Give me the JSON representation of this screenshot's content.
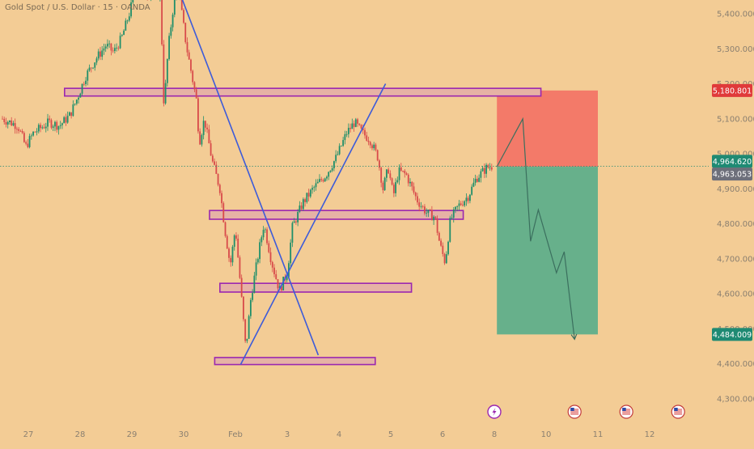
{
  "header": {
    "symbol_title": "Gold Spot / U.S. Dollar · 15 · OANDA"
  },
  "colors": {
    "background": "#f3cc95",
    "candle_up": "#1f8f6a",
    "candle_down": "#d84a4a",
    "zone_fill": "#e6b2a5",
    "zone_border": "#9b27b0",
    "trend_line": "#3d5bd9",
    "stop_zone": "#f37a69",
    "target_zone": "#67b08b",
    "projection": "#3b6f5e",
    "price_axis_text": "#8a7f70",
    "badge_current": "#1f8a73",
    "badge_prev": "#6d6f7a",
    "badge_stop": "#e03a3a",
    "badge_target": "#1f8a73"
  },
  "chart_data": {
    "type": "candlestick",
    "title": "Gold Spot / U.S. Dollar · 15 · OANDA",
    "ylim": [
      4250,
      5450
    ],
    "y_ticks": [
      {
        "value": 5400,
        "label": "5,400.000"
      },
      {
        "value": 5300,
        "label": "5,300.000"
      },
      {
        "value": 5200,
        "label": "5,200.000"
      },
      {
        "value": 5100,
        "label": "5,100.000"
      },
      {
        "value": 5000,
        "label": "5,000.000"
      },
      {
        "value": 4900,
        "label": "4,900.000"
      },
      {
        "value": 4800,
        "label": "4,800.000"
      },
      {
        "value": 4700,
        "label": "4,700.000"
      },
      {
        "value": 4600,
        "label": "4,600.000"
      },
      {
        "value": 4500,
        "label": "4,500.000"
      },
      {
        "value": 4400,
        "label": "4,400.000"
      },
      {
        "value": 4300,
        "label": "4,300.000"
      }
    ],
    "x_ticks": [
      {
        "t": 27,
        "label": "27"
      },
      {
        "t": 28,
        "label": "28"
      },
      {
        "t": 29,
        "label": "29"
      },
      {
        "t": 30,
        "label": "30"
      },
      {
        "t": 31,
        "label": "Feb"
      },
      {
        "t": 32,
        "label": "3"
      },
      {
        "t": 33,
        "label": "4"
      },
      {
        "t": 34,
        "label": "5"
      },
      {
        "t": 35,
        "label": "6"
      },
      {
        "t": 36,
        "label": "8"
      },
      {
        "t": 37,
        "label": "10"
      },
      {
        "t": 38,
        "label": "11"
      },
      {
        "t": 39,
        "label": "12"
      }
    ],
    "price_path": [
      [
        26.5,
        5100
      ],
      [
        26.8,
        5080
      ],
      [
        26.95,
        5020
      ],
      [
        27.1,
        5060
      ],
      [
        27.4,
        5090
      ],
      [
        27.6,
        5080
      ],
      [
        27.8,
        5110
      ],
      [
        27.95,
        5160
      ],
      [
        28.1,
        5220
      ],
      [
        28.3,
        5270
      ],
      [
        28.5,
        5310
      ],
      [
        28.65,
        5290
      ],
      [
        28.8,
        5330
      ],
      [
        28.95,
        5400
      ],
      [
        29.05,
        5460
      ],
      [
        29.55,
        5460
      ],
      [
        29.62,
        5130
      ],
      [
        29.7,
        5300
      ],
      [
        29.8,
        5420
      ],
      [
        29.9,
        5470
      ],
      [
        30.05,
        5310
      ],
      [
        30.15,
        5230
      ],
      [
        30.25,
        5150
      ],
      [
        30.3,
        5030
      ],
      [
        30.4,
        5100
      ],
      [
        30.55,
        4980
      ],
      [
        30.7,
        4900
      ],
      [
        30.8,
        4780
      ],
      [
        30.9,
        4680
      ],
      [
        31.0,
        4790
      ],
      [
        31.1,
        4620
      ],
      [
        31.2,
        4440
      ],
      [
        31.3,
        4590
      ],
      [
        31.45,
        4720
      ],
      [
        31.55,
        4800
      ],
      [
        31.7,
        4690
      ],
      [
        31.85,
        4610
      ],
      [
        32.0,
        4660
      ],
      [
        32.1,
        4790
      ],
      [
        32.3,
        4860
      ],
      [
        32.5,
        4900
      ],
      [
        32.75,
        4940
      ],
      [
        32.95,
        4990
      ],
      [
        33.15,
        5060
      ],
      [
        33.3,
        5090
      ],
      [
        33.45,
        5060
      ],
      [
        33.6,
        5040
      ],
      [
        33.75,
        4990
      ],
      [
        33.85,
        4900
      ],
      [
        33.95,
        4960
      ],
      [
        34.05,
        4880
      ],
      [
        34.15,
        4950
      ],
      [
        34.3,
        4940
      ],
      [
        34.5,
        4870
      ],
      [
        34.7,
        4830
      ],
      [
        34.85,
        4820
      ],
      [
        34.95,
        4740
      ],
      [
        35.05,
        4690
      ],
      [
        35.15,
        4810
      ],
      [
        35.3,
        4850
      ],
      [
        35.5,
        4880
      ],
      [
        35.65,
        4930
      ],
      [
        35.85,
        4960
      ],
      [
        35.95,
        4965
      ]
    ],
    "zones": [
      {
        "t0": 27.7,
        "t1": 36.9,
        "y_top": 5187,
        "y_bottom": 5165
      },
      {
        "t0": 30.5,
        "t1": 35.4,
        "y_top": 4838,
        "y_bottom": 4813
      },
      {
        "t0": 30.7,
        "t1": 34.4,
        "y_top": 4630,
        "y_bottom": 4605
      },
      {
        "t0": 30.6,
        "t1": 33.7,
        "y_top": 4418,
        "y_bottom": 4398
      }
    ],
    "trend_lines": [
      {
        "from": [
          29.95,
          5450
        ],
        "to": [
          32.6,
          4425
        ]
      },
      {
        "from": [
          31.1,
          4398
        ],
        "to": [
          33.9,
          5200
        ]
      }
    ],
    "position": {
      "t0": 36.05,
      "t1": 38.0,
      "entry": 4963.053,
      "stop": 5180.801,
      "target": 4484.009
    },
    "projection_path": [
      [
        36.05,
        4963
      ],
      [
        36.55,
        5100
      ],
      [
        36.7,
        4750
      ],
      [
        36.85,
        4840
      ],
      [
        37.2,
        4660
      ],
      [
        37.35,
        4720
      ],
      [
        37.55,
        4470
      ]
    ],
    "last_price_line": 4964.62,
    "price_badges": [
      {
        "role": "stop",
        "label": "5,180.801",
        "value": 5180.801
      },
      {
        "role": "current",
        "label": "4,964.620",
        "value": 4964.62
      },
      {
        "role": "prev",
        "label": "4,963.053",
        "value": 4963.053
      },
      {
        "role": "target",
        "label": "4,484.009",
        "value": 4484.009
      }
    ],
    "event_markers": [
      {
        "t": 36.0,
        "kind": "lightning-icon"
      },
      {
        "t": 37.55,
        "kind": "us-flag-icon"
      },
      {
        "t": 38.55,
        "kind": "us-flag-icon"
      },
      {
        "t": 39.55,
        "kind": "us-flag-icon"
      }
    ]
  }
}
